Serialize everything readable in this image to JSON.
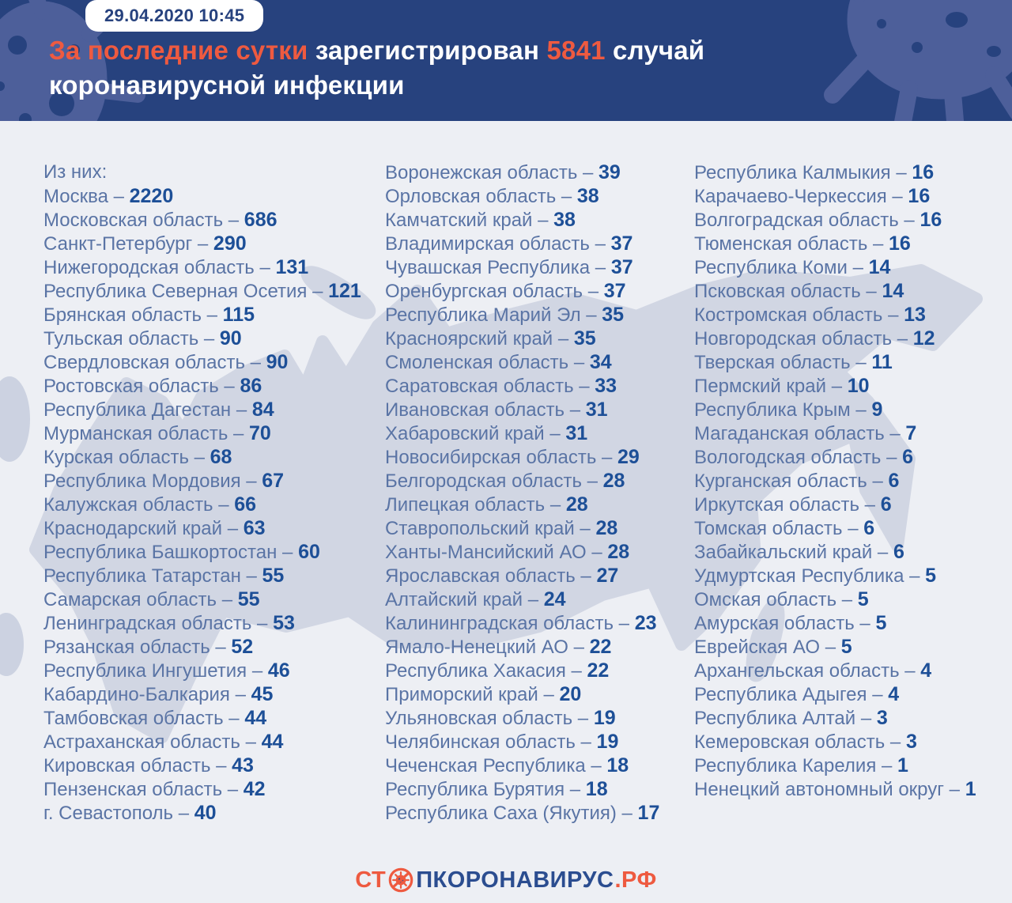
{
  "page": {
    "background": "#edeff4",
    "header_background": "#27427e",
    "accent_orange": "#ee5a40",
    "region_name_color": "#5a74a5",
    "region_count_color": "#1d4f97",
    "map_color": "#cfd4e2"
  },
  "header": {
    "timestamp": "29.04.2020 10:45",
    "title": {
      "highlight": "За последние сутки",
      "middle": " зарегистрирован ",
      "number": "5841",
      "tail": " случай",
      "line2": "коронавирусной инфекции"
    }
  },
  "chart_data": {
    "type": "table",
    "title": "За последние сутки зарегистрирован 5841 случай коронавирусной инфекции",
    "timestamp": "29.04.2020 10:45",
    "total_new_cases": 5841,
    "intro": "Из них:",
    "separator": "–",
    "columns": [
      {
        "items": [
          {
            "region": "Москва",
            "cases": "2220"
          },
          {
            "region": "Московская область",
            "cases": "686"
          },
          {
            "region": "Санкт-Петербург",
            "cases": "290"
          },
          {
            "region": "Нижегородская область",
            "cases": "131"
          },
          {
            "region": "Республика Северная Осетия",
            "cases": "121"
          },
          {
            "region": "Брянская область",
            "cases": "115"
          },
          {
            "region": "Тульская область",
            "cases": "90"
          },
          {
            "region": "Свердловская область",
            "cases": "90"
          },
          {
            "region": "Ростовская область",
            "cases": "86"
          },
          {
            "region": "Республика Дагестан",
            "cases": "84"
          },
          {
            "region": "Мурманская область",
            "cases": "70"
          },
          {
            "region": "Курская область",
            "cases": "68"
          },
          {
            "region": "Республика Мордовия",
            "cases": "67"
          },
          {
            "region": "Калужская область",
            "cases": "66"
          },
          {
            "region": "Краснодарский край",
            "cases": "63"
          },
          {
            "region": "Республика Башкортостан",
            "cases": "60"
          },
          {
            "region": "Республика Татарстан",
            "cases": "55"
          },
          {
            "region": "Самарская область",
            "cases": "55"
          },
          {
            "region": "Ленинградская область",
            "cases": "53"
          },
          {
            "region": "Рязанская область",
            "cases": "52"
          },
          {
            "region": "Республика Ингушетия",
            "cases": "46"
          },
          {
            "region": "Кабардино-Балкария",
            "cases": "45"
          },
          {
            "region": "Тамбовская область",
            "cases": "44"
          },
          {
            "region": "Астраханская область",
            "cases": "44"
          },
          {
            "region": "Кировская область",
            "cases": "43"
          },
          {
            "region": "Пензенская область",
            "cases": "42"
          },
          {
            "region": "г. Севастополь",
            "cases": "40"
          }
        ]
      },
      {
        "items": [
          {
            "region": "Воронежская область",
            "cases": "39"
          },
          {
            "region": "Орловская область",
            "cases": "38"
          },
          {
            "region": "Камчатский край",
            "cases": "38"
          },
          {
            "region": "Владимирская область",
            "cases": "37"
          },
          {
            "region": "Чувашская Республика",
            "cases": "37"
          },
          {
            "region": "Оренбургская область",
            "cases": "37"
          },
          {
            "region": "Республика Марий Эл",
            "cases": "35"
          },
          {
            "region": "Красноярский край",
            "cases": "35"
          },
          {
            "region": "Смоленская область",
            "cases": "34"
          },
          {
            "region": "Саратовская область",
            "cases": "33"
          },
          {
            "region": "Ивановская область",
            "cases": "31"
          },
          {
            "region": "Хабаровский край",
            "cases": "31"
          },
          {
            "region": "Новосибирская область",
            "cases": "29"
          },
          {
            "region": "Белгородская область",
            "cases": "28"
          },
          {
            "region": "Липецкая область",
            "cases": "28"
          },
          {
            "region": "Ставропольский край",
            "cases": "28"
          },
          {
            "region": "Ханты-Мансийский АО",
            "cases": "28"
          },
          {
            "region": "Ярославская область",
            "cases": "27"
          },
          {
            "region": "Алтайский край",
            "cases": "24"
          },
          {
            "region": "Калининградская область",
            "cases": "23"
          },
          {
            "region": "Ямало-Ненецкий АО",
            "cases": "22"
          },
          {
            "region": "Республика Хакасия",
            "cases": "22"
          },
          {
            "region": "Приморский край",
            "cases": "20"
          },
          {
            "region": "Ульяновская область",
            "cases": "19"
          },
          {
            "region": "Челябинская область",
            "cases": "19"
          },
          {
            "region": "Чеченская Республика",
            "cases": "18"
          },
          {
            "region": "Республика Бурятия",
            "cases": "18"
          },
          {
            "region": "Республика Саха (Якутия)",
            "cases": "17"
          }
        ]
      },
      {
        "items": [
          {
            "region": "Республика Калмыкия",
            "cases": "16"
          },
          {
            "region": "Карачаево-Черкессия",
            "cases": "16"
          },
          {
            "region": "Волгоградская область",
            "cases": "16"
          },
          {
            "region": "Тюменская область",
            "cases": "16"
          },
          {
            "region": "Республика Коми",
            "cases": "14"
          },
          {
            "region": "Псковская область",
            "cases": "14"
          },
          {
            "region": "Костромская область",
            "cases": "13"
          },
          {
            "region": "Новгородская область",
            "cases": "12"
          },
          {
            "region": "Тверская область",
            "cases": "11"
          },
          {
            "region": "Пермский край",
            "cases": "10"
          },
          {
            "region": "Республика Крым",
            "cases": "9"
          },
          {
            "region": "Магаданская область",
            "cases": "7"
          },
          {
            "region": "Вологодская область",
            "cases": "6"
          },
          {
            "region": "Курганская область",
            "cases": "6"
          },
          {
            "region": "Иркутская область",
            "cases": "6"
          },
          {
            "region": "Томская область",
            "cases": "6"
          },
          {
            "region": "Забайкальский край",
            "cases": "6"
          },
          {
            "region": "Удмуртская Республика",
            "cases": "5"
          },
          {
            "region": "Омская область",
            "cases": "5"
          },
          {
            "region": "Амурская область",
            "cases": "5"
          },
          {
            "region": "Еврейская АО",
            "cases": "5"
          },
          {
            "region": "Архангельская область",
            "cases": "4"
          },
          {
            "region": "Республика Адыгея",
            "cases": "4"
          },
          {
            "region": "Республика Алтай",
            "cases": "3"
          },
          {
            "region": "Кемеровская область",
            "cases": "3"
          },
          {
            "region": "Республика Карелия",
            "cases": "1"
          },
          {
            "region": "Ненецкий автономный округ",
            "cases": "1"
          }
        ]
      }
    ]
  },
  "footer": {
    "logo_prefix": "СТ",
    "logo_middle": "ПКОРОНАВИРУС",
    "logo_suffix": ".РФ",
    "logo_icon": "no-virus-icon"
  }
}
